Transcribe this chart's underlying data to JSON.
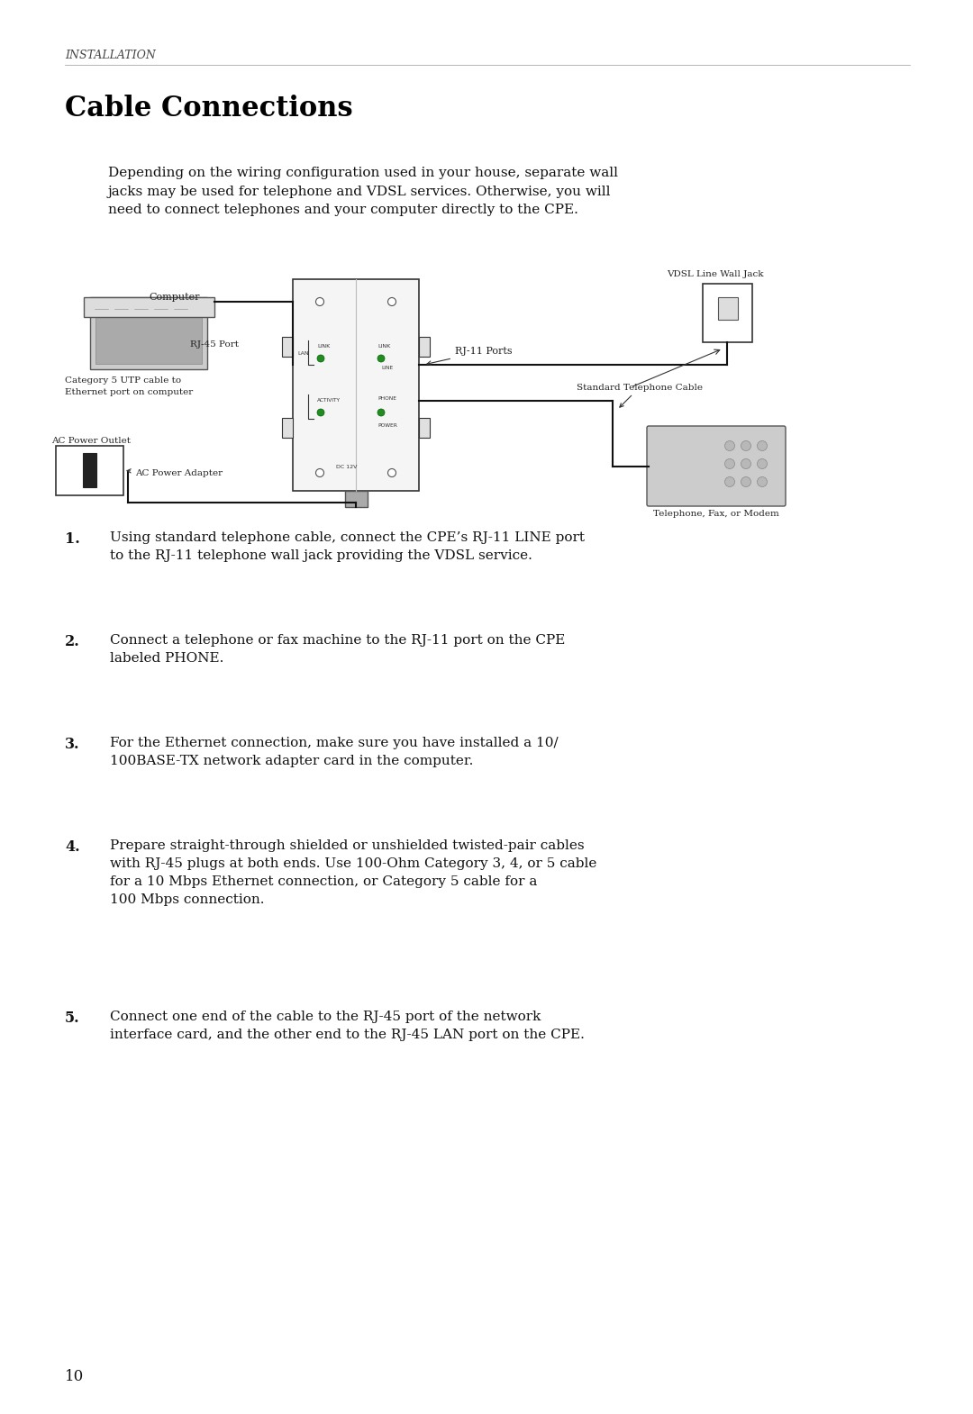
{
  "bg_color": "#ffffff",
  "header_text": "INSTALLATION",
  "title_text": "Cable Connections",
  "body_text": "Depending on the wiring configuration used in your house, separate wall\njacks may be used for telephone and VDSL services. Otherwise, you will\nneed to connect telephones and your computer directly to the CPE.",
  "list_items": [
    {
      "num": "1.",
      "text": "Using standard telephone cable, connect the CPE’s RJ-11 LINE port\nto the RJ-11 telephone wall jack providing the VDSL service."
    },
    {
      "num": "2.",
      "text": "Connect a telephone or fax machine to the RJ-11 port on the CPE\nlabeled PHONE."
    },
    {
      "num": "3.",
      "text": "For the Ethernet connection, make sure you have installed a 10/\n100BASE-TX network adapter card in the computer."
    },
    {
      "num": "4.",
      "text": "Prepare straight-through shielded or unshielded twisted-pair cables\nwith RJ-45 plugs at both ends. Use 100-Ohm Category 3, 4, or 5 cable\nfor a 10 Mbps Ethernet connection, or Category 5 cable for a\n100 Mbps connection."
    },
    {
      "num": "5.",
      "text": "Connect one end of the cable to the RJ-45 port of the network\ninterface card, and the other end to the RJ-45 LAN port on the CPE."
    }
  ],
  "page_number": "10",
  "diagram_labels": {
    "computer": "Computer",
    "rj45": "RJ-45 Port",
    "cat5": "Category 5 UTP cable to\nEthernet port on computer",
    "rj11": "RJ-11 Ports",
    "vdsl_jack": "VDSL Line Wall Jack",
    "std_cable": "Standard Telephone Cable",
    "telephone": "Telephone, Fax, or Modem",
    "ac_outlet": "AC Power Outlet",
    "ac_adapter": "AC Power Adapter",
    "link_lan": "LINK",
    "lan_label": "LAN",
    "link_line": "LINK",
    "line_label": "LINE",
    "phone_label": "PHONE",
    "activity_label": "ACTIVITY",
    "power_label": "POWER",
    "dc_label": "DC 12V"
  }
}
